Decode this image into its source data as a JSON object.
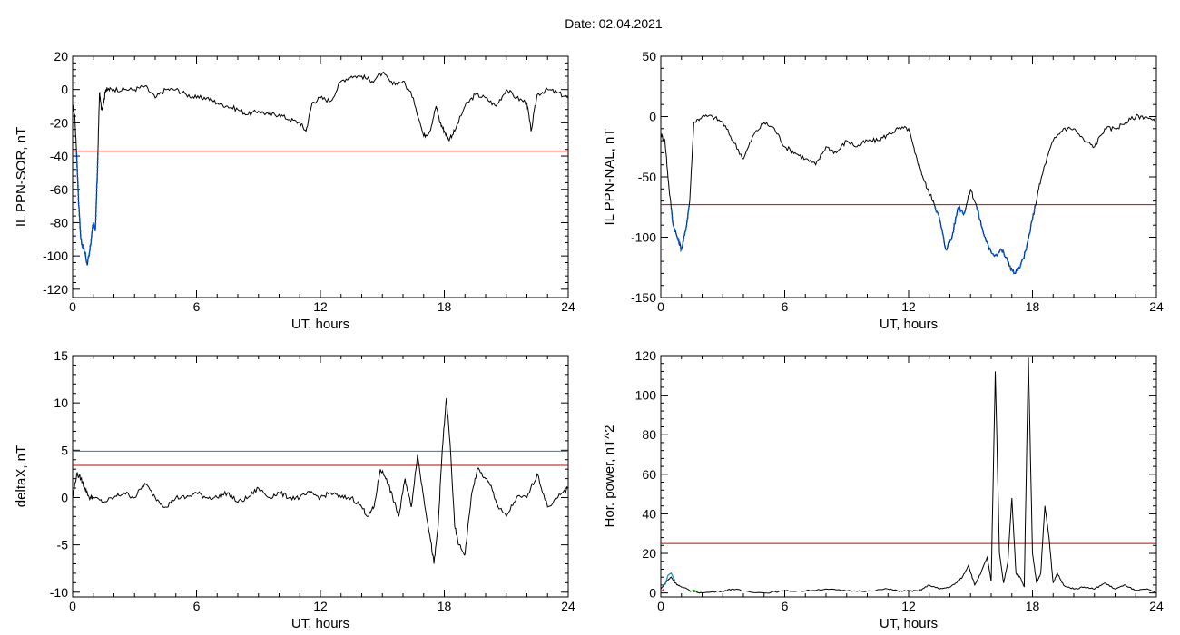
{
  "title": "Date:  02.04.2021",
  "chart_data": [
    {
      "type": "line",
      "xlabel": "UT, hours",
      "ylabel": "IL PPN-SOR, nT",
      "xlim": [
        0,
        24
      ],
      "ylim": [
        -125,
        20
      ],
      "xticks": [
        0,
        6,
        12,
        18,
        24
      ],
      "yticks": [
        -120,
        -100,
        -80,
        -60,
        -40,
        -20,
        0,
        20
      ],
      "threshold": -37,
      "threshold_color": "#cc0000",
      "series_color": "#000000",
      "highlight_color": "#0055dd",
      "x": [
        0,
        0.1,
        0.2,
        0.3,
        0.4,
        0.5,
        0.6,
        0.7,
        0.8,
        0.9,
        1.0,
        1.1,
        1.2,
        1.3,
        1.4,
        1.5,
        1.6,
        1.7,
        2,
        2.5,
        3,
        3.5,
        4,
        4.5,
        5,
        5.5,
        6,
        6.5,
        7,
        7.5,
        8,
        8.5,
        9,
        9.5,
        10,
        10.5,
        11,
        11.3,
        11.6,
        12,
        12.5,
        13,
        13.5,
        14,
        14.5,
        15,
        15.5,
        16,
        16.5,
        17,
        17.3,
        17.6,
        17.8,
        18,
        18.2,
        18.5,
        19,
        19.5,
        20,
        20.5,
        21,
        21.5,
        22,
        22.2,
        22.5,
        23,
        23.5,
        24
      ],
      "y": [
        -10,
        -15,
        -40,
        -70,
        -90,
        -95,
        -98,
        -105,
        -100,
        -90,
        -80,
        -85,
        -50,
        -2,
        -12,
        -8,
        0,
        0,
        0,
        0,
        0,
        2,
        -5,
        0,
        0,
        -3,
        -5,
        -5,
        -8,
        -10,
        -12,
        -15,
        -13,
        -15,
        -15,
        -18,
        -20,
        -25,
        -8,
        -5,
        -7,
        5,
        8,
        8,
        5,
        10,
        3,
        5,
        -5,
        -28,
        -25,
        -10,
        -20,
        -25,
        -30,
        -25,
        -10,
        -3,
        -5,
        -10,
        0,
        -5,
        -8,
        -25,
        -3,
        0,
        -2,
        -5
      ],
      "highlight_x_range": [
        0.1,
        1.5
      ]
    },
    {
      "type": "line",
      "xlabel": "UT, hours",
      "ylabel": "IL PPN-NAL, nT",
      "xlim": [
        0,
        24
      ],
      "ylim": [
        -150,
        50
      ],
      "xticks": [
        0,
        6,
        12,
        18,
        24
      ],
      "yticks": [
        -150,
        -100,
        -50,
        0,
        50
      ],
      "threshold": -73,
      "threshold_color": "#cc0000",
      "series_color": "#000000",
      "highlight_color": "#0055dd",
      "x": [
        0,
        0.2,
        0.4,
        0.6,
        0.8,
        1.0,
        1.2,
        1.4,
        1.6,
        2,
        2.5,
        3,
        3.5,
        4,
        4.5,
        5,
        5.5,
        6,
        6.5,
        7,
        7.5,
        8,
        8.5,
        9,
        9.5,
        10,
        10.5,
        11,
        11.5,
        12,
        12.3,
        12.6,
        12.9,
        13.2,
        13.5,
        13.8,
        14.1,
        14.4,
        14.7,
        15,
        15.3,
        15.6,
        15.9,
        16.2,
        16.5,
        16.8,
        17.1,
        17.4,
        17.7,
        18,
        18.3,
        18.6,
        19,
        19.5,
        20,
        20.5,
        21,
        21.5,
        22,
        22.5,
        23,
        23.5,
        24
      ],
      "y": [
        -15,
        -20,
        -60,
        -90,
        -100,
        -110,
        -95,
        -70,
        -5,
        0,
        0,
        -5,
        -20,
        -35,
        -15,
        -5,
        -10,
        -25,
        -30,
        -35,
        -40,
        -25,
        -30,
        -20,
        -25,
        -20,
        -20,
        -15,
        -10,
        -10,
        -30,
        -45,
        -60,
        -70,
        -85,
        -110,
        -100,
        -75,
        -80,
        -60,
        -75,
        -95,
        -110,
        -115,
        -110,
        -120,
        -130,
        -125,
        -110,
        -85,
        -60,
        -40,
        -20,
        -10,
        -10,
        -20,
        -25,
        -10,
        -10,
        -5,
        0,
        0,
        -5
      ],
      "highlight_x_range": [
        0.2,
        1.4
      ],
      "highlight_x_range_2": [
        12.9,
        18.3
      ]
    },
    {
      "type": "line",
      "xlabel": "UT, hours",
      "ylabel": "deltaX, nT",
      "xlim": [
        0,
        24
      ],
      "ylim": [
        -10.5,
        15
      ],
      "xticks": [
        0,
        6,
        12,
        18,
        24
      ],
      "yticks": [
        -10,
        -5,
        0,
        5,
        10,
        15
      ],
      "threshold": 3.4,
      "threshold_color": "#cc0000",
      "threshold_2": 4.9,
      "threshold_2_color": "#1a8aaa",
      "series_color": "#000000",
      "x": [
        0,
        0.2,
        0.4,
        0.6,
        0.8,
        1.0,
        1.5,
        2,
        2.5,
        3,
        3.5,
        4,
        4.5,
        5,
        5.5,
        6,
        6.5,
        7,
        7.5,
        8,
        8.5,
        9,
        9.5,
        10,
        10.5,
        11,
        11.5,
        12,
        12.5,
        13,
        13.5,
        14,
        14.3,
        14.6,
        14.9,
        15.2,
        15.5,
        15.8,
        16.1,
        16.4,
        16.7,
        17.0,
        17.3,
        17.5,
        17.7,
        17.9,
        18.1,
        18.3,
        18.5,
        18.7,
        19.0,
        19.3,
        19.6,
        20,
        20.3,
        20.6,
        21,
        21.5,
        22,
        22.5,
        23,
        23.5,
        24
      ],
      "y": [
        0,
        2.5,
        2,
        1,
        0,
        0,
        -0.5,
        0,
        0.5,
        0,
        1.5,
        0,
        -1,
        0,
        0,
        0.5,
        0,
        0,
        0.5,
        -0.5,
        0,
        1,
        0,
        0.5,
        0,
        0,
        0.5,
        0,
        0.5,
        0,
        0,
        -1,
        -2,
        -1,
        3,
        2,
        0,
        -2,
        2,
        -1,
        4.5,
        0,
        -4,
        -7,
        -3,
        5,
        10.5,
        5,
        -3,
        -5,
        -6,
        0,
        3,
        2,
        1,
        -1,
        -2,
        0,
        0,
        2.5,
        -1,
        0,
        1
      ]
    },
    {
      "type": "line",
      "xlabel": "UT, hours",
      "ylabel": "Hor. power, nT^2",
      "xlim": [
        0,
        24
      ],
      "ylim": [
        -2,
        120
      ],
      "xticks": [
        0,
        6,
        12,
        18,
        24
      ],
      "yticks": [
        0,
        20,
        40,
        60,
        80,
        100,
        120
      ],
      "threshold": 25,
      "threshold_color": "#cc0000",
      "series_color": "#000000",
      "x": [
        0,
        0.3,
        0.5,
        0.7,
        1.0,
        1.5,
        2,
        3,
        3.5,
        4,
        5,
        6,
        7,
        8,
        9,
        10,
        11,
        11.5,
        12,
        12.5,
        13,
        13.5,
        14,
        14.3,
        14.6,
        14.9,
        15.2,
        15.5,
        15.8,
        16.0,
        16.2,
        16.4,
        16.6,
        16.8,
        17.0,
        17.2,
        17.4,
        17.6,
        17.8,
        18.0,
        18.2,
        18.4,
        18.6,
        18.8,
        19.0,
        19.2,
        19.5,
        20,
        20.5,
        21,
        21.5,
        22,
        22.5,
        23,
        23.5,
        24
      ],
      "y": [
        2,
        6,
        8,
        5,
        3,
        1,
        0,
        1,
        2,
        1,
        0,
        1,
        1,
        2,
        1,
        1,
        2,
        1,
        1,
        1,
        4,
        2,
        3,
        5,
        8,
        14,
        4,
        10,
        18,
        6,
        112,
        20,
        5,
        15,
        48,
        10,
        8,
        3,
        119,
        20,
        5,
        10,
        44,
        28,
        5,
        10,
        4,
        2,
        3,
        2,
        5,
        2,
        4,
        1,
        2,
        0
      ],
      "extra_marks": [
        {
          "x": [
            0.2,
            0.35,
            0.5,
            0.7
          ],
          "y": [
            4,
            9,
            10,
            6
          ],
          "color": "#1a8aaa"
        },
        {
          "x": [
            1.4,
            1.6,
            1.8
          ],
          "y": [
            0.5,
            1.5,
            0.5
          ],
          "color": "#22aa22"
        },
        {
          "x": [
            0.05,
            0.15
          ],
          "y": [
            1,
            2
          ],
          "color": "#cc0000"
        }
      ]
    }
  ]
}
